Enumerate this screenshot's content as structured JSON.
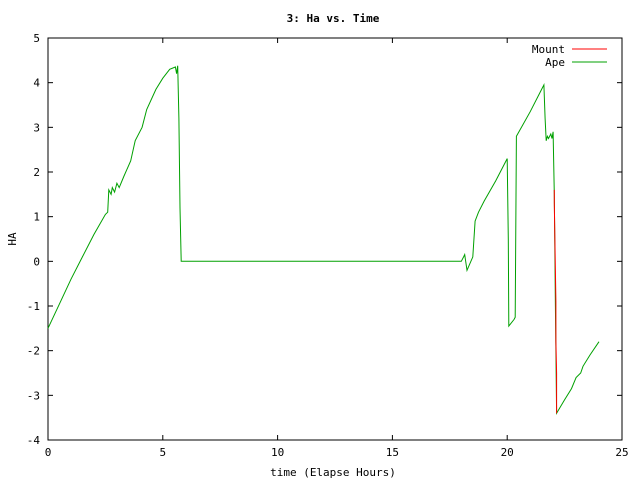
{
  "chart_data": {
    "type": "line",
    "title": "3: Ha vs. Time",
    "xlabel": "time (Elapse Hours)",
    "ylabel": "HA",
    "xlim": [
      0,
      25
    ],
    "ylim": [
      -4,
      5
    ],
    "x_ticks": [
      0,
      5,
      10,
      15,
      20,
      25
    ],
    "y_ticks": [
      -4,
      -3,
      -2,
      -1,
      0,
      1,
      2,
      3,
      4,
      5
    ],
    "x_tick_labels": [
      "0",
      "5",
      "10",
      "15",
      "20",
      "25"
    ],
    "y_tick_labels": [
      "-4",
      "-3",
      "-2",
      "-1",
      "0",
      "1",
      "2",
      "3",
      "4",
      "5"
    ],
    "grid": false,
    "legend_position": "top-right",
    "series": [
      {
        "name": "Mount",
        "color": "#ff0000",
        "points": [
          [
            22.05,
            1.6
          ],
          [
            22.05,
            1.3
          ],
          [
            22.12,
            -0.9
          ],
          [
            22.12,
            -1.8
          ],
          [
            22.15,
            -2.5
          ],
          [
            22.15,
            -3.4
          ]
        ]
      },
      {
        "name": "Ape",
        "color": "#00a000",
        "points": [
          [
            0,
            -1.5
          ],
          [
            0.5,
            -0.95
          ],
          [
            1.0,
            -0.4
          ],
          [
            1.5,
            0.1
          ],
          [
            2.0,
            0.6
          ],
          [
            2.5,
            1.05
          ],
          [
            2.6,
            1.1
          ],
          [
            2.65,
            1.6
          ],
          [
            2.75,
            1.5
          ],
          [
            2.8,
            1.65
          ],
          [
            2.9,
            1.55
          ],
          [
            3.0,
            1.75
          ],
          [
            3.1,
            1.65
          ],
          [
            3.3,
            1.9
          ],
          [
            3.6,
            2.25
          ],
          [
            3.8,
            2.7
          ],
          [
            4.1,
            3.0
          ],
          [
            4.3,
            3.4
          ],
          [
            4.7,
            3.85
          ],
          [
            5.0,
            4.1
          ],
          [
            5.3,
            4.3
          ],
          [
            5.55,
            4.35
          ],
          [
            5.6,
            4.2
          ],
          [
            5.65,
            4.38
          ],
          [
            5.7,
            3.2
          ],
          [
            5.75,
            1.2
          ],
          [
            5.8,
            0.0
          ],
          [
            18.0,
            0.0
          ],
          [
            18.1,
            0.1
          ],
          [
            18.15,
            0.15
          ],
          [
            18.25,
            -0.2
          ],
          [
            18.5,
            0.1
          ],
          [
            18.6,
            0.9
          ],
          [
            18.75,
            1.1
          ],
          [
            19.0,
            1.35
          ],
          [
            19.5,
            1.8
          ],
          [
            20.0,
            2.3
          ],
          [
            20.05,
            0.5
          ],
          [
            20.07,
            -1.45
          ],
          [
            20.3,
            -1.3
          ],
          [
            20.35,
            -1.25
          ],
          [
            20.4,
            2.8
          ],
          [
            21.0,
            3.35
          ],
          [
            21.5,
            3.85
          ],
          [
            21.6,
            3.95
          ],
          [
            21.65,
            3.2
          ],
          [
            21.7,
            2.7
          ],
          [
            21.75,
            2.8
          ],
          [
            21.8,
            2.75
          ],
          [
            21.9,
            2.85
          ],
          [
            21.95,
            2.75
          ],
          [
            22.0,
            2.9
          ],
          [
            22.05,
            1.5
          ],
          [
            22.1,
            -1.0
          ],
          [
            22.12,
            -2.0
          ],
          [
            22.15,
            -3.4
          ],
          [
            22.5,
            -3.1
          ],
          [
            22.8,
            -2.85
          ],
          [
            23.0,
            -2.6
          ],
          [
            23.2,
            -2.5
          ],
          [
            23.3,
            -2.35
          ],
          [
            23.6,
            -2.1
          ],
          [
            24.0,
            -1.8
          ]
        ]
      }
    ]
  }
}
